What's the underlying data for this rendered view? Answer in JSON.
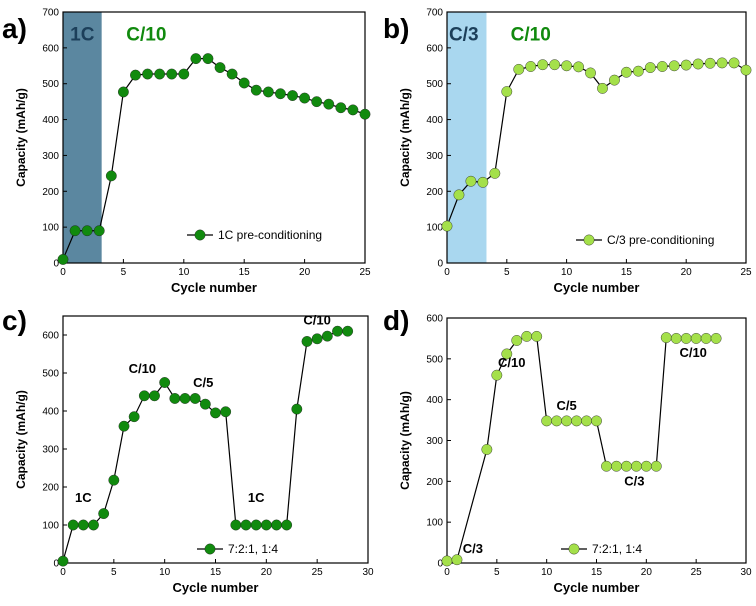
{
  "chart_data": [
    {
      "type": "line",
      "label": "a)",
      "xlabel": "Cycle number",
      "ylabel": "Capacity (mAh/g)",
      "xlim": [
        0,
        25
      ],
      "ylim": [
        0,
        700
      ],
      "xticks": [
        "0",
        "5",
        "10",
        "15",
        "20",
        "25"
      ],
      "yticks": [
        "0",
        "100",
        "200",
        "300",
        "400",
        "500",
        "600",
        "700"
      ],
      "series": [
        {
          "name": "1C pre-conditioning",
          "color": "#118a0e",
          "x": [
            0,
            1,
            2,
            3,
            4,
            5,
            6,
            7,
            8,
            9,
            10,
            11,
            12,
            13,
            14,
            15,
            16,
            17,
            18,
            19,
            20,
            21,
            22,
            23,
            24,
            25
          ],
          "y": [
            10,
            90,
            90,
            90,
            243,
            477,
            524,
            527,
            527,
            527,
            527,
            570,
            570,
            545,
            527,
            502,
            482,
            477,
            472,
            467,
            460,
            450,
            443,
            433,
            427,
            415
          ]
        }
      ],
      "shaded": [
        {
          "x0": 0,
          "x1": 3.2,
          "color": "#5b87a0"
        }
      ],
      "annotations": [
        {
          "text": "1C",
          "x": 1.6,
          "y": 620,
          "color": "#1c3f5a"
        },
        {
          "text": "C/10",
          "x": 6.9,
          "y": 620,
          "color": "#118a0e"
        }
      ],
      "legend_position": "lower-right"
    },
    {
      "type": "line",
      "label": "b)",
      "xlabel": "Cycle number",
      "ylabel": "Capacity (mAh/g)",
      "xlim": [
        0,
        25
      ],
      "ylim": [
        0,
        700
      ],
      "xticks": [
        "0",
        "5",
        "10",
        "15",
        "20",
        "25"
      ],
      "yticks": [
        "0",
        "100",
        "200",
        "300",
        "400",
        "500",
        "600",
        "700"
      ],
      "series": [
        {
          "name": "C/3 pre-conditioning",
          "color": "#a4e04a",
          "x": [
            0,
            1,
            2,
            3,
            4,
            5,
            6,
            7,
            8,
            9,
            10,
            11,
            12,
            13,
            14,
            15,
            16,
            17,
            18,
            19,
            20,
            21,
            22,
            23,
            24,
            25
          ],
          "y": [
            103,
            190,
            228,
            225,
            250,
            478,
            540,
            548,
            553,
            553,
            550,
            547,
            530,
            487,
            510,
            532,
            535,
            545,
            548,
            550,
            552,
            555,
            557,
            558,
            558,
            538
          ]
        }
      ],
      "shaded": [
        {
          "x0": 0,
          "x1": 3.3,
          "color": "#a9d7ef"
        }
      ],
      "annotations": [
        {
          "text": "C/3",
          "x": 1.4,
          "y": 620,
          "color": "#1c3f5a"
        },
        {
          "text": "C/10",
          "x": 7.0,
          "y": 620,
          "color": "#118a0e"
        }
      ],
      "legend_position": "lower-right"
    },
    {
      "type": "line",
      "label": "c)",
      "xlabel": "Cycle number",
      "ylabel": "Capacity (mAh/g)",
      "xlim": [
        0,
        30
      ],
      "ylim": [
        0,
        650
      ],
      "xticks": [
        "0",
        "5",
        "10",
        "15",
        "20",
        "25",
        "30"
      ],
      "yticks": [
        "0",
        "100",
        "200",
        "300",
        "400",
        "500",
        "600"
      ],
      "series": [
        {
          "name": "7:2:1, 1:4",
          "color": "#118a0e",
          "x": [
            0,
            1,
            2,
            3,
            4,
            5,
            6,
            7,
            8,
            9,
            10,
            11,
            12,
            13,
            14,
            15,
            16,
            17,
            18,
            19,
            20,
            21,
            22,
            23,
            24,
            25,
            26,
            27,
            28
          ],
          "y": [
            5,
            100,
            100,
            100,
            130,
            218,
            360,
            385,
            440,
            440,
            475,
            433,
            433,
            433,
            418,
            395,
            398,
            100,
            100,
            100,
            100,
            100,
            100,
            405,
            583,
            590,
            597,
            610,
            610
          ]
        }
      ],
      "annotations": [
        {
          "text": "1C",
          "x": 2.0,
          "y": 160
        },
        {
          "text": "C/10",
          "x": 7.8,
          "y": 500
        },
        {
          "text": "C/5",
          "x": 13.8,
          "y": 463
        },
        {
          "text": "1C",
          "x": 19.0,
          "y": 160
        },
        {
          "text": "C/10",
          "x": 25.0,
          "y": 628
        }
      ],
      "legend_position": "bottom-center"
    },
    {
      "type": "line",
      "label": "d)",
      "xlabel": "Cycle number",
      "ylabel": "Capacity (mAh/g)",
      "xlim": [
        0,
        30
      ],
      "ylim": [
        0,
        600
      ],
      "xticks": [
        "0",
        "5",
        "10",
        "15",
        "20",
        "25",
        "30"
      ],
      "yticks": [
        "0",
        "100",
        "200",
        "300",
        "400",
        "500",
        "600"
      ],
      "series": [
        {
          "name": "7:2:1, 1:4",
          "color": "#a4e04a",
          "x": [
            0,
            1,
            2,
            3,
            4,
            5,
            6,
            7,
            8,
            9,
            10,
            11,
            12,
            13,
            14,
            15,
            16,
            17,
            18,
            19,
            20,
            21,
            22,
            23,
            24,
            25,
            26,
            27
          ],
          "y": [
            5,
            8,
            null,
            null,
            278,
            460,
            512,
            545,
            555,
            555,
            348,
            348,
            348,
            348,
            348,
            348,
            237,
            237,
            237,
            237,
            237,
            237,
            552,
            550,
            550,
            550,
            550,
            550
          ]
        }
      ],
      "annotations": [
        {
          "text": "C/3",
          "x": 2.6,
          "y": 25
        },
        {
          "text": "C/10",
          "x": 6.5,
          "y": 480
        },
        {
          "text": "C/5",
          "x": 12.0,
          "y": 375
        },
        {
          "text": "C/3",
          "x": 18.8,
          "y": 190
        },
        {
          "text": "C/10",
          "x": 24.7,
          "y": 505
        }
      ],
      "legend_position": "bottom-center"
    }
  ]
}
